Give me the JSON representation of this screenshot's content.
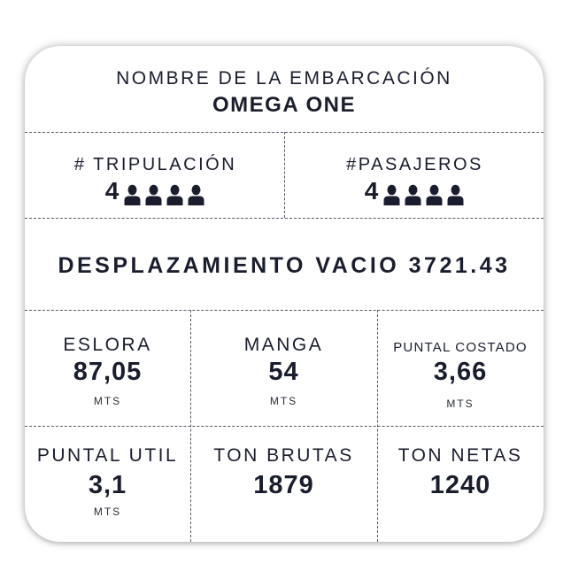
{
  "vessel": {
    "name_label": "NOMBRE DE LA EMBARCACIÓN",
    "name_value": "OMEGA ONE"
  },
  "crew": {
    "label": "# TRIPULACIÓN",
    "value": "4",
    "icon_count": 4,
    "icon": "person-icon"
  },
  "passengers": {
    "label": "#PASAJEROS",
    "value": "4",
    "icon_count": 4,
    "icon": "person-icon"
  },
  "displacement": {
    "text": "DESPLAZAMIENTO VACIO 3721.43"
  },
  "specs": [
    {
      "label": "ESLORA",
      "value": "87,05",
      "unit": "MTS"
    },
    {
      "label": "MANGA",
      "value": "54",
      "unit": "MTS"
    },
    {
      "label": "PUNTAL COSTADO",
      "value": "3,66",
      "unit": "MTS"
    },
    {
      "label": "PUNTAL UTIL",
      "value": "3,1",
      "unit": "MTS"
    },
    {
      "label": "TON BRUTAS",
      "value": "1879"
    },
    {
      "label": "TON NETAS",
      "value": "1240"
    }
  ],
  "colors": {
    "text": "#1a1d2e",
    "divider": "#555a66",
    "background": "#ffffff"
  }
}
